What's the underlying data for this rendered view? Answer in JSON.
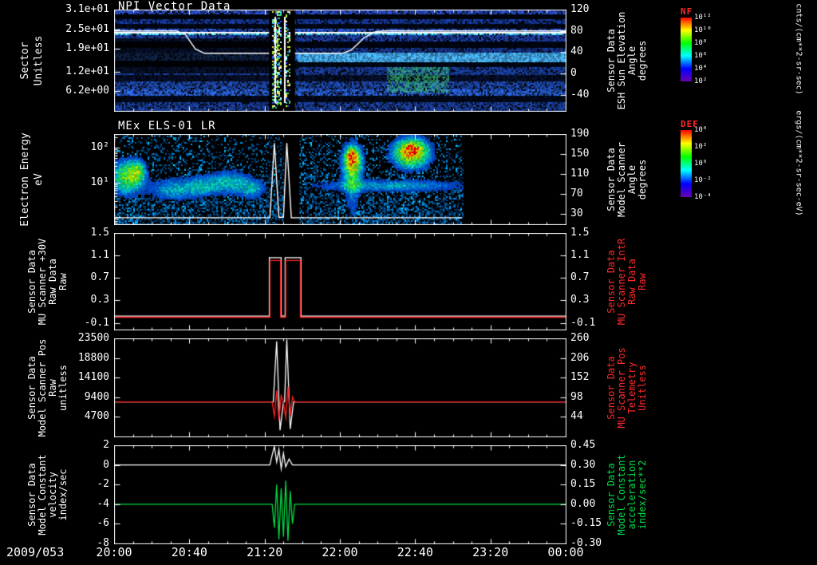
{
  "chart_data": {
    "x_axis": {
      "date_label": "2009/053",
      "tick_labels": [
        "20:00",
        "20:40",
        "21:20",
        "22:00",
        "22:40",
        "23:20",
        "00:00"
      ],
      "tick_values": [
        20,
        20.6667,
        21.3333,
        22,
        22.6667,
        23.3333,
        24
      ],
      "range": [
        20,
        24
      ]
    },
    "colorbars": [
      {
        "id": "nf",
        "label": "NF",
        "label_color": "#ff2a2a",
        "tick_labels": [
          "10¹²",
          "10¹⁰",
          "10⁸",
          "10⁶",
          "10⁴",
          "10²"
        ],
        "units": "cnts/(cm**2-sr-sec)",
        "gradient": [
          "#ff0000",
          "#ffff00",
          "#00ff00",
          "#00ffff",
          "#0000ff",
          "#6a00b0"
        ]
      },
      {
        "id": "def",
        "label": "DEF",
        "label_color": "#ff2a2a",
        "tick_labels": [
          "10⁴",
          "10²",
          "10⁰",
          "10⁻²",
          "10⁻⁴"
        ],
        "units": "ergs/(cm**2-sr-sec-eV)",
        "gradient": [
          "#ff0000",
          "#ffff00",
          "#00ff00",
          "#00ffff",
          "#0000ff",
          "#6a00b0"
        ]
      }
    ],
    "panels": [
      {
        "id": "npi",
        "type": "heatmap",
        "title": "NPI Vector Data",
        "left_label": "Sector\nUnitless",
        "right_label": "Sensor Data\nESH Sun Elevation\nAngle\ndegrees",
        "left_ticks": {
          "labels": [
            "3.1e+01",
            "2.5e+01",
            "1.9e+01",
            "1.2e+01",
            "6.2e+00"
          ],
          "values": [
            31,
            25,
            19,
            12,
            6.2
          ],
          "range": [
            0,
            31
          ]
        },
        "right_ticks": {
          "labels": [
            "120",
            "80",
            "40",
            "0",
            "-40"
          ],
          "values": [
            120,
            80,
            40,
            0,
            -40
          ],
          "range": [
            -70,
            120
          ]
        },
        "hline_value": 77,
        "overlay": {
          "color": "#ffffff",
          "axis": "right",
          "points": [
            [
              20,
              80
            ],
            [
              20.55,
              80
            ],
            [
              20.63,
              74
            ],
            [
              20.72,
              46
            ],
            [
              20.8,
              38
            ],
            [
              21.37,
              38
            ],
            [
              21.6,
              38
            ],
            [
              22.02,
              38
            ],
            [
              22.1,
              44
            ],
            [
              22.22,
              68
            ],
            [
              22.32,
              79
            ],
            [
              22.4,
              80
            ],
            [
              24,
              80
            ]
          ]
        },
        "features": {
          "bands": [
            [
              0,
              0.045,
              "#2a50d0",
              0.85
            ],
            [
              0.045,
              0.09,
              "#000818",
              0.45
            ],
            [
              0.09,
              0.13,
              "#1840b0",
              0.8
            ],
            [
              0.13,
              0.175,
              "#051030",
              0.55
            ],
            [
              0.175,
              0.215,
              "#2a55cc",
              0.9
            ],
            [
              0.215,
              0.245,
              "#39c7ff",
              1.0
            ],
            [
              0.245,
              0.3,
              "#1f45b8",
              0.8
            ],
            [
              0.3,
              0.36,
              "#020a28",
              0.5
            ],
            [
              0.36,
              0.42,
              "#1b40aa",
              0.75
            ],
            [
              0.42,
              0.5,
              "#2e6ae0",
              0.9
            ],
            [
              0.5,
              0.56,
              "#04102e",
              0.5
            ],
            [
              0.56,
              0.63,
              "#1b45b0",
              0.8
            ],
            [
              0.63,
              0.7,
              "#0a1a48",
              0.6
            ],
            [
              0.7,
              0.78,
              "#2050c0",
              0.8
            ],
            [
              0.78,
              0.84,
              "#2860d8",
              0.9
            ],
            [
              0.84,
              0.9,
              "#061233",
              0.55
            ],
            [
              0.9,
              1,
              "#1c45ae",
              0.8
            ]
          ],
          "left_dark": {
            "t1": 21.37,
            "y0": 0.28,
            "y1": 0.62,
            "mult": 0.3
          },
          "right_bright": {
            "t0": 21.62,
            "y0": 0.41,
            "y1": 0.51,
            "color": "#49b8ff"
          },
          "green_patch": {
            "t0": 22.4,
            "t1": 22.95,
            "y0": 0.55,
            "y1": 0.8,
            "color": "#3fd67c"
          },
          "gap": {
            "t0": 21.37,
            "t1": 21.6
          },
          "speckle_columns": [
            {
              "t0": 21.4,
              "t1": 21.47,
              "density": 0.5
            },
            {
              "t0": 21.52,
              "t1": 21.55,
              "density": 0.35
            }
          ],
          "white_vlines": [
            21.415,
            21.5
          ],
          "palette": [
            "#ffffff",
            "#aef63a",
            "#37e06e",
            "#ffe94a",
            "#41d9ff",
            "#3355ff"
          ]
        }
      },
      {
        "id": "els",
        "type": "heatmap",
        "title": "MEx ELS-01 LR",
        "left_label": "Electron Energy\neV",
        "right_label": "Sensor Data\nModel Scanner\nAngle\ndegrees",
        "left_ticks": {
          "labels": [
            "10²",
            "10¹"
          ],
          "values": [
            2,
            1
          ],
          "log": true,
          "range": [
            -0.2,
            2.4
          ]
        },
        "right_ticks": {
          "labels": [
            "190",
            "150",
            "110",
            "70",
            "30"
          ],
          "values": [
            190,
            150,
            110,
            70,
            30
          ],
          "range": [
            10,
            190
          ]
        },
        "overlay": {
          "color": "#ffffff",
          "axis": "right",
          "points": [
            [
              20,
              23
            ],
            [
              21.38,
              23
            ],
            [
              21.42,
              172
            ],
            [
              21.46,
              24
            ],
            [
              21.5,
              24
            ],
            [
              21.53,
              172
            ],
            [
              21.57,
              23
            ],
            [
              23.08,
              23
            ]
          ]
        },
        "features": {
          "data_end": 23.08,
          "noise_density": 0.6,
          "gap": {
            "t0": 21.5,
            "t1": 21.64
          },
          "blobs": [
            [
              20.1,
              0.47,
              0.1,
              0.13,
              0.55
            ],
            [
              20.2,
              0.4,
              0.05,
              0.08,
              0.4
            ],
            [
              20.52,
              0.6,
              0.15,
              0.09,
              0.32
            ],
            [
              20.78,
              0.56,
              0.1,
              0.08,
              0.28
            ],
            [
              21.02,
              0.52,
              0.12,
              0.1,
              0.33
            ],
            [
              21.22,
              0.6,
              0.08,
              0.08,
              0.28
            ],
            [
              22.1,
              0.3,
              0.06,
              0.13,
              0.75
            ],
            [
              22.1,
              0.22,
              0.035,
              0.05,
              0.4
            ],
            [
              22.1,
              0.62,
              0.05,
              0.22,
              0.22
            ],
            [
              22.62,
              0.2,
              0.11,
              0.11,
              0.85
            ],
            [
              22.64,
              0.16,
              0.055,
              0.05,
              0.35
            ],
            [
              22.45,
              0.56,
              0.5,
              0.05,
              0.3
            ]
          ]
        }
      },
      {
        "id": "mu30v",
        "type": "line",
        "title": "",
        "left_label": "Sensor Data\nMU Scanner +30V\nRaw Data\nRaw",
        "right_label": "Sensor Data\nMU Scanner IntR\nRaw Data\nRaw",
        "right_label_color": "#ff2a2a",
        "left_ticks": {
          "labels": [
            "1.5",
            "1.1",
            "0.7",
            "0.3",
            "-0.1"
          ],
          "values": [
            1.5,
            1.1,
            0.7,
            0.3,
            -0.1
          ],
          "range": [
            -0.22,
            1.5
          ]
        },
        "right_ticks": {
          "labels": [
            "1.5",
            "1.1",
            "0.7",
            "0.3",
            "-0.1"
          ],
          "values": [
            1.5,
            1.1,
            0.7,
            0.3,
            -0.1
          ],
          "range": [
            -0.22,
            1.5
          ]
        },
        "series": [
          {
            "color": "#ffffff",
            "axis": "left",
            "points": [
              [
                20,
                0.02
              ],
              [
                21.375,
                0.02
              ],
              [
                21.375,
                1.06
              ],
              [
                21.48,
                1.06
              ],
              [
                21.48,
                0.02
              ],
              [
                21.515,
                0.02
              ],
              [
                21.515,
                1.06
              ],
              [
                21.655,
                1.06
              ],
              [
                21.655,
                0.02
              ],
              [
                24,
                0.02
              ]
            ]
          },
          {
            "color": "#ff2222",
            "axis": "left",
            "points": [
              [
                20,
                0
              ],
              [
                21.38,
                0
              ],
              [
                21.38,
                1.01
              ],
              [
                21.475,
                1.01
              ],
              [
                21.475,
                0
              ],
              [
                21.52,
                0
              ],
              [
                21.52,
                1.01
              ],
              [
                21.65,
                1.01
              ],
              [
                21.65,
                0
              ],
              [
                24,
                0
              ]
            ]
          }
        ]
      },
      {
        "id": "scanpos",
        "type": "line",
        "title": "",
        "left_label": "Sensor Data\nModel Scanner Pos\nRaw\nunitless",
        "right_label": "Sensor Data\nMU Scanner Pos\nTelemetry\nUnitless",
        "right_label_color": "#ff2a2a",
        "left_ticks": {
          "labels": [
            "23500",
            "18800",
            "14100",
            "9400",
            "4700"
          ],
          "values": [
            23500,
            18800,
            14100,
            9400,
            4700
          ],
          "range": [
            0,
            23500
          ]
        },
        "right_ticks": {
          "labels": [
            "260",
            "206",
            "152",
            "98",
            "44"
          ],
          "values": [
            260,
            206,
            152,
            98,
            44
          ],
          "range": [
            -10,
            260
          ]
        },
        "series": [
          {
            "color": "#ffffff",
            "axis": "left",
            "points": [
              [
                20,
                8300
              ],
              [
                21.41,
                8300
              ],
              [
                21.44,
                22800
              ],
              [
                21.47,
                1500
              ],
              [
                21.5,
                8300
              ],
              [
                21.51,
                8300
              ],
              [
                21.53,
                23200
              ],
              [
                21.56,
                1800
              ],
              [
                21.59,
                8300
              ],
              [
                24,
                8300
              ]
            ]
          },
          {
            "color": "#ff2222",
            "axis": "left",
            "points": [
              [
                20,
                8300
              ],
              [
                21.4,
                8300
              ],
              [
                21.42,
                4800
              ],
              [
                21.44,
                11000
              ],
              [
                21.46,
                3800
              ],
              [
                21.48,
                9800
              ],
              [
                21.5,
                8300
              ],
              [
                21.52,
                4500
              ],
              [
                21.54,
                12000
              ],
              [
                21.56,
                5000
              ],
              [
                21.58,
                9500
              ],
              [
                21.6,
                8300
              ],
              [
                24,
                8300
              ]
            ]
          }
        ]
      },
      {
        "id": "modelconst",
        "type": "line",
        "title": "",
        "left_label": "Sensor Data\nModel Constant\nvelocity\nindex/sec",
        "right_label": "Sensor Data\nModel Constant\nacceleration\nindex/sec**2",
        "right_label_color": "#00dd44",
        "left_ticks": {
          "labels": [
            "2",
            "0",
            "-2",
            "-4",
            "-6",
            "-8"
          ],
          "values": [
            2,
            0,
            -2,
            -4,
            -6,
            -8
          ],
          "range": [
            -8,
            2
          ]
        },
        "right_ticks": {
          "labels": [
            "0.45",
            "0.30",
            "0.15",
            "0.00",
            "-0.15",
            "-0.30"
          ],
          "values": [
            0.45,
            0.3,
            0.15,
            0,
            -0.15,
            -0.3
          ],
          "range": [
            -0.3,
            0.45
          ]
        },
        "series": [
          {
            "color": "#ffffff",
            "axis": "left",
            "points": [
              [
                20,
                0
              ],
              [
                21.38,
                0
              ],
              [
                21.4,
                1
              ],
              [
                21.42,
                1.9
              ],
              [
                21.44,
                0.3
              ],
              [
                21.46,
                1.6
              ],
              [
                21.48,
                -0.4
              ],
              [
                21.5,
                1.2
              ],
              [
                21.52,
                -0.2
              ],
              [
                21.55,
                0.6
              ],
              [
                21.58,
                0
              ],
              [
                24,
                0
              ]
            ]
          },
          {
            "color": "#00dd44",
            "axis": "right",
            "points": [
              [
                20,
                0
              ],
              [
                21.4,
                0
              ],
              [
                21.42,
                -0.18
              ],
              [
                21.44,
                0.15
              ],
              [
                21.46,
                -0.27
              ],
              [
                21.48,
                0.12
              ],
              [
                21.5,
                -0.25
              ],
              [
                21.52,
                0.18
              ],
              [
                21.54,
                -0.28
              ],
              [
                21.56,
                0.1
              ],
              [
                21.58,
                -0.15
              ],
              [
                21.6,
                0
              ],
              [
                24,
                0
              ]
            ]
          }
        ]
      }
    ]
  }
}
